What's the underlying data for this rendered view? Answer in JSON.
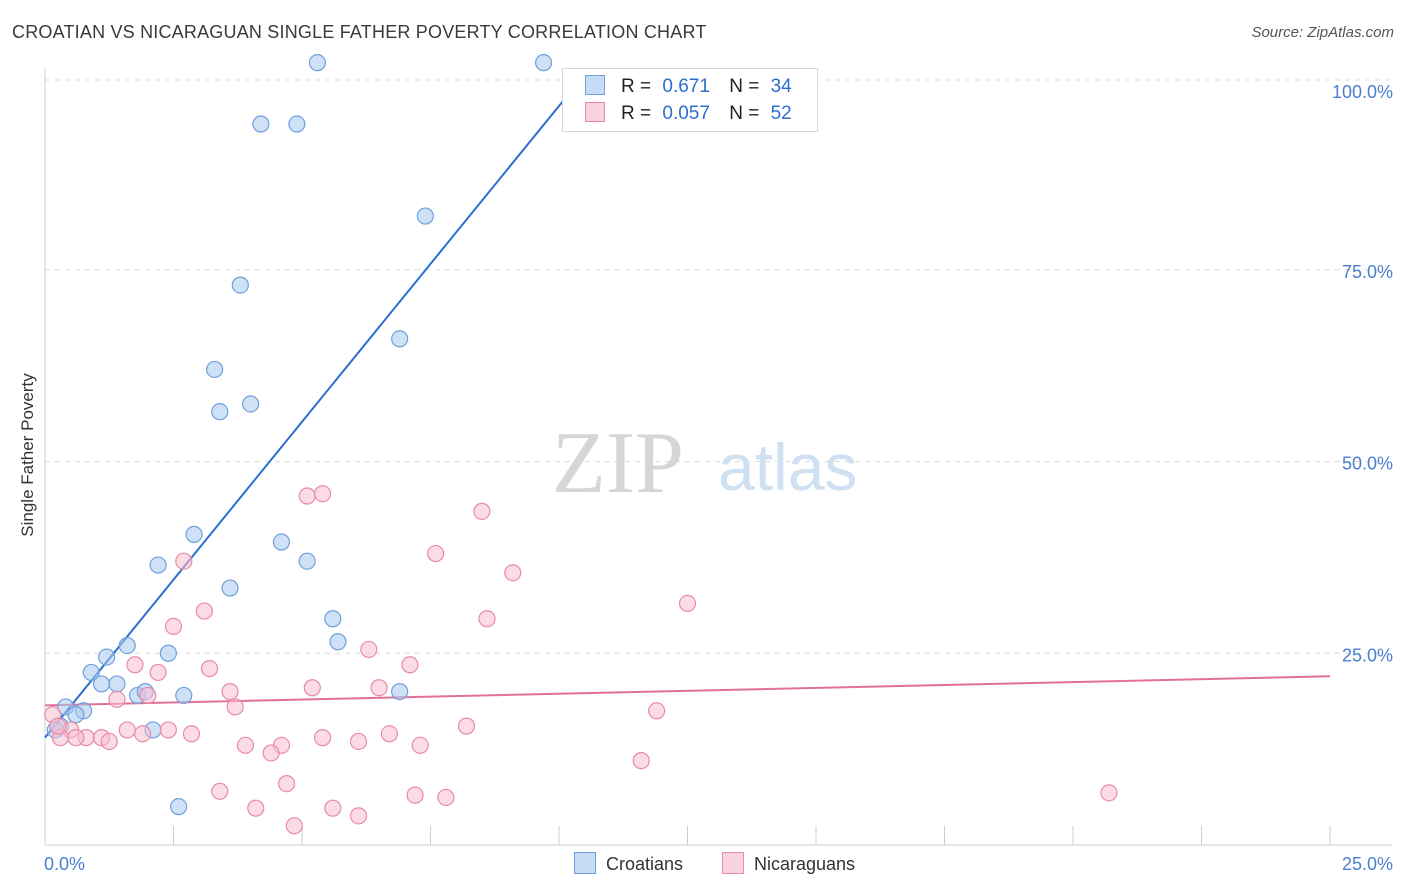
{
  "header": {
    "title": "CROATIAN VS NICARAGUAN SINGLE FATHER POVERTY CORRELATION CHART",
    "source": "Source: ZipAtlas.com"
  },
  "watermark": {
    "zip": "ZIP",
    "atlas": "atlas"
  },
  "legend": {
    "rows": [
      {
        "r_label": "R =",
        "r_value": "0.671",
        "n_label": "N =",
        "n_value": "34",
        "color": "#a8c8f0",
        "border": "#6f9fdc"
      },
      {
        "r_label": "R =",
        "r_value": "0.057",
        "n_label": "N =",
        "n_value": "52",
        "color": "#f7bfd0",
        "border": "#e88aa8"
      }
    ]
  },
  "bottom_legend": {
    "croatians": "Croatians",
    "nicaraguans": "Nicaraguans"
  },
  "chart_data": {
    "type": "scatter",
    "title": "CROATIAN VS NICARAGUAN SINGLE FATHER POVERTY CORRELATION CHART",
    "xlabel": "",
    "ylabel": "Single Father Poverty",
    "xlim": [
      0,
      25
    ],
    "ylim": [
      0,
      100
    ],
    "x_tick_labels": [
      "0.0%",
      "25.0%"
    ],
    "y_tick_labels": [
      "25.0%",
      "50.0%",
      "75.0%",
      "100.0%"
    ],
    "y_ticks": [
      25,
      50,
      75,
      100
    ],
    "grid": true,
    "legend_position": "top-center",
    "series": [
      {
        "name": "Croatians",
        "color": "#a8c8f0",
        "stroke": "#6f9fdc",
        "line_color": "#2c6fd0",
        "trend": {
          "x0": 0,
          "y0": 14,
          "x1": 10.2,
          "y1": 98
        },
        "points": [
          [
            5.3,
            102.0
          ],
          [
            9.7,
            102.0
          ],
          [
            4.2,
            94.0
          ],
          [
            4.9,
            94.0
          ],
          [
            7.4,
            82.0
          ],
          [
            3.8,
            73.0
          ],
          [
            6.9,
            66.0
          ],
          [
            3.3,
            62.0
          ],
          [
            3.4,
            56.5
          ],
          [
            4.0,
            57.5
          ],
          [
            2.9,
            40.5
          ],
          [
            4.6,
            39.5
          ],
          [
            2.2,
            36.5
          ],
          [
            5.1,
            37.0
          ],
          [
            3.6,
            33.5
          ],
          [
            5.6,
            29.5
          ],
          [
            5.7,
            26.5
          ],
          [
            1.6,
            26.0
          ],
          [
            2.4,
            25.0
          ],
          [
            1.2,
            24.5
          ],
          [
            0.9,
            22.5
          ],
          [
            1.4,
            21.0
          ],
          [
            1.1,
            21.0
          ],
          [
            1.8,
            19.5
          ],
          [
            1.95,
            20.0
          ],
          [
            2.7,
            19.5
          ],
          [
            6.9,
            20.0
          ],
          [
            0.4,
            18.0
          ],
          [
            0.75,
            17.5
          ],
          [
            0.6,
            17.0
          ],
          [
            2.1,
            15.0
          ],
          [
            0.3,
            15.5
          ],
          [
            0.2,
            15.0
          ],
          [
            2.6,
            5.0
          ]
        ]
      },
      {
        "name": "Nicaraguans",
        "color": "#f7bfd0",
        "stroke": "#e88aa8",
        "line_color": "#e2719a",
        "trend": {
          "x0": 0,
          "y0": 18.2,
          "x1": 25,
          "y1": 22.0
        },
        "points": [
          [
            5.1,
            45.5
          ],
          [
            5.4,
            45.8
          ],
          [
            8.5,
            43.5
          ],
          [
            7.6,
            38.0
          ],
          [
            2.7,
            37.0
          ],
          [
            9.1,
            35.5
          ],
          [
            12.5,
            31.5
          ],
          [
            3.1,
            30.5
          ],
          [
            2.5,
            28.5
          ],
          [
            8.6,
            29.5
          ],
          [
            6.3,
            25.5
          ],
          [
            1.75,
            23.5
          ],
          [
            7.1,
            23.5
          ],
          [
            3.2,
            23.0
          ],
          [
            2.2,
            22.5
          ],
          [
            5.2,
            20.5
          ],
          [
            6.5,
            20.5
          ],
          [
            3.6,
            20.0
          ],
          [
            2.0,
            19.5
          ],
          [
            1.4,
            19.0
          ],
          [
            3.7,
            18.0
          ],
          [
            11.9,
            17.5
          ],
          [
            8.2,
            15.5
          ],
          [
            1.6,
            15.0
          ],
          [
            2.4,
            15.0
          ],
          [
            2.85,
            14.5
          ],
          [
            6.7,
            14.5
          ],
          [
            1.9,
            14.5
          ],
          [
            0.5,
            15.0
          ],
          [
            0.8,
            14.0
          ],
          [
            1.1,
            14.0
          ],
          [
            0.3,
            14.0
          ],
          [
            5.4,
            14.0
          ],
          [
            6.1,
            13.5
          ],
          [
            0.6,
            14.0
          ],
          [
            1.25,
            13.5
          ],
          [
            3.9,
            13.0
          ],
          [
            4.6,
            13.0
          ],
          [
            7.3,
            13.0
          ],
          [
            4.4,
            12.0
          ],
          [
            11.6,
            11.0
          ],
          [
            4.7,
            8.0
          ],
          [
            3.4,
            7.0
          ],
          [
            7.2,
            6.5
          ],
          [
            7.8,
            6.2
          ],
          [
            20.7,
            6.8
          ],
          [
            4.1,
            4.8
          ],
          [
            5.6,
            4.8
          ],
          [
            6.1,
            3.8
          ],
          [
            4.85,
            2.5
          ],
          [
            0.15,
            17.0
          ],
          [
            0.25,
            15.5
          ]
        ]
      }
    ]
  }
}
